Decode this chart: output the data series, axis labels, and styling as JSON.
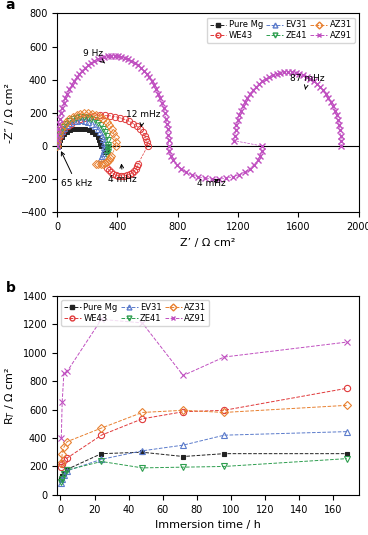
{
  "panel_a": {
    "xlabel": "Z’ / Ω cm²",
    "ylabel": "-Z″ / Ω cm²",
    "xlim": [
      0,
      2000
    ],
    "ylim": [
      -400,
      800
    ],
    "xticks": [
      0,
      400,
      800,
      1200,
      1600,
      2000
    ],
    "yticks": [
      -400,
      -200,
      0,
      200,
      400,
      600,
      800
    ]
  },
  "panel_b": {
    "xlabel": "Immersion time / h",
    "ylabel": "R$_{T}$ / Ω cm²",
    "xlim": [
      -2,
      175
    ],
    "ylim": [
      0,
      1400
    ],
    "xticks": [
      0,
      20,
      40,
      60,
      80,
      100,
      120,
      140,
      160
    ],
    "yticks": [
      0,
      200,
      400,
      600,
      800,
      1000,
      1200,
      1400
    ]
  },
  "series": {
    "PureMg": {
      "color": "#222222",
      "marker": "s",
      "label": "Pure Mg",
      "filled": true
    },
    "WE43": {
      "color": "#e0393a",
      "marker": "o",
      "label": "WE43",
      "filled": false
    },
    "EV31": {
      "color": "#5b7bcb",
      "marker": "^",
      "label": "EV31",
      "filled": false
    },
    "ZE41": {
      "color": "#2e9e4f",
      "marker": "v",
      "label": "ZE41",
      "filled": false
    },
    "AZ31": {
      "color": "#e88030",
      "marker": "D",
      "label": "AZ31",
      "filled": false
    },
    "AZ91": {
      "color": "#c050c0",
      "marker": "x",
      "label": "AZ91",
      "filled": true
    }
  },
  "order": [
    "PureMg",
    "WE43",
    "EV31",
    "ZE41",
    "AZ31",
    "AZ91"
  ]
}
